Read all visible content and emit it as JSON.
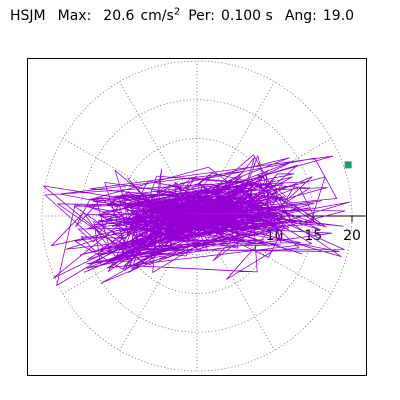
{
  "header": {
    "station": "HSJM",
    "max_label": "Max:",
    "max_value": "20.6",
    "max_unit": "cm/s",
    "max_unit_exp": "2",
    "per_label": "Per:",
    "per_value": "0.100 s",
    "ang_label": "Ang:",
    "ang_value": "19.0"
  },
  "chart_data": {
    "type": "polar-trace",
    "title": "HSJM Max: 20.6 cm/s2 Per: 0.100 s Ang: 19.0",
    "station": "HSJM",
    "max": 20.6,
    "max_unit": "cm/s2",
    "period_s": 0.1,
    "angle_deg": 19.0,
    "radial_range": [
      0,
      21
    ],
    "radial_ticks": [
      5,
      10,
      15,
      20
    ],
    "radial_tick_labels": [
      "10",
      "15",
      "20"
    ],
    "grid": true,
    "grid_angle_step_deg": 30,
    "marker_color": "#1a9a7a",
    "trace_color": "#9400d3",
    "peak": {
      "x": 19.5,
      "y": 6.6
    }
  }
}
